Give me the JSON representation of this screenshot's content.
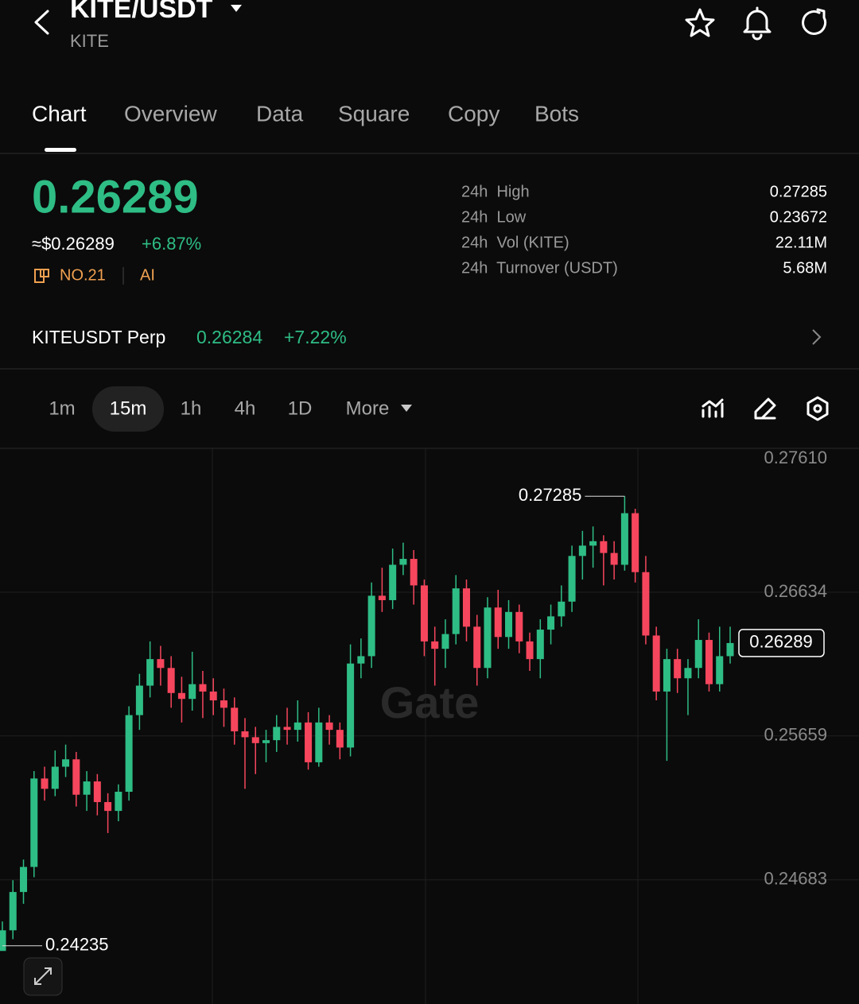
{
  "header": {
    "title": "KITE/USDT",
    "subtitle": "KITE"
  },
  "tabs": [
    "Chart",
    "Overview",
    "Data",
    "Square",
    "Copy",
    "Bots"
  ],
  "price": {
    "last": "0.26289",
    "usd": "≈$0.26289",
    "change": "+6.87%",
    "rank": "NO.21",
    "tag": "AI"
  },
  "stats": [
    {
      "label": "24h  High",
      "value": "0.27285"
    },
    {
      "label": "24h  Low",
      "value": "0.23672"
    },
    {
      "label": "24h  Vol (KITE)",
      "value": "22.11M"
    },
    {
      "label": "24h  Turnover (USDT)",
      "value": "5.68M"
    }
  ],
  "perp": {
    "name": "KITEUSDT Perp",
    "price": "0.26284",
    "change": "+7.22%"
  },
  "intervals": [
    "1m",
    "15m",
    "1h",
    "4h",
    "1D",
    "More"
  ],
  "chart_data": {
    "type": "candlestick",
    "watermark": "Gate",
    "up_color": "#2ebd85",
    "down_color": "#f6465d",
    "ylim": [
      0.2384,
      0.2761
    ],
    "yticks": [
      {
        "value": 0.2761,
        "label": "0.27610"
      },
      0.26634,
      0.25659,
      0.24683
    ],
    "grid": true,
    "high_marker": "0.27285",
    "low_marker": "0.24235",
    "last_price_label": "0.26289",
    "candles": [
      [
        0.242,
        0.244,
        0.24235,
        0.2434
      ],
      [
        0.2434,
        0.2468,
        0.2428,
        0.246
      ],
      [
        0.246,
        0.2482,
        0.2452,
        0.2477
      ],
      [
        0.2477,
        0.2542,
        0.247,
        0.2537
      ],
      [
        0.2537,
        0.2545,
        0.2522,
        0.253
      ],
      [
        0.253,
        0.2556,
        0.2525,
        0.2545
      ],
      [
        0.2545,
        0.256,
        0.2538,
        0.255
      ],
      [
        0.255,
        0.2555,
        0.2518,
        0.2526
      ],
      [
        0.2526,
        0.2542,
        0.2515,
        0.2535
      ],
      [
        0.2535,
        0.254,
        0.2512,
        0.2521
      ],
      [
        0.2521,
        0.2527,
        0.25,
        0.2515
      ],
      [
        0.2515,
        0.2533,
        0.2508,
        0.2528
      ],
      [
        0.2528,
        0.2586,
        0.2522,
        0.258
      ],
      [
        0.258,
        0.2608,
        0.257,
        0.26
      ],
      [
        0.26,
        0.263,
        0.2592,
        0.2618
      ],
      [
        0.2618,
        0.2627,
        0.26,
        0.2612
      ],
      [
        0.2612,
        0.262,
        0.2585,
        0.2595
      ],
      [
        0.2595,
        0.2606,
        0.2575,
        0.2591
      ],
      [
        0.2591,
        0.2623,
        0.2583,
        0.2601
      ],
      [
        0.2601,
        0.261,
        0.2578,
        0.2596
      ],
      [
        0.2596,
        0.2605,
        0.258,
        0.259
      ],
      [
        0.259,
        0.2598,
        0.2572,
        0.2585
      ],
      [
        0.2585,
        0.2592,
        0.256,
        0.2569
      ],
      [
        0.2569,
        0.2578,
        0.253,
        0.2565
      ],
      [
        0.2565,
        0.2572,
        0.254,
        0.2561
      ],
      [
        0.2561,
        0.257,
        0.2548,
        0.2563
      ],
      [
        0.2563,
        0.258,
        0.2555,
        0.2572
      ],
      [
        0.2572,
        0.2585,
        0.256,
        0.257
      ],
      [
        0.257,
        0.259,
        0.2562,
        0.2575
      ],
      [
        0.2575,
        0.2582,
        0.2543,
        0.2548
      ],
      [
        0.2548,
        0.2585,
        0.2545,
        0.2575
      ],
      [
        0.2575,
        0.258,
        0.256,
        0.257
      ],
      [
        0.257,
        0.2575,
        0.255,
        0.2558
      ],
      [
        0.2558,
        0.2628,
        0.2552,
        0.2615
      ],
      [
        0.2615,
        0.2632,
        0.2605,
        0.262
      ],
      [
        0.262,
        0.267,
        0.2612,
        0.2661
      ],
      [
        0.2661,
        0.268,
        0.265,
        0.2658
      ],
      [
        0.2658,
        0.2693,
        0.2652,
        0.2682
      ],
      [
        0.2682,
        0.2697,
        0.2675,
        0.2686
      ],
      [
        0.2686,
        0.2692,
        0.2655,
        0.2668
      ],
      [
        0.2668,
        0.2672,
        0.262,
        0.263
      ],
      [
        0.263,
        0.264,
        0.26,
        0.2625
      ],
      [
        0.2625,
        0.2645,
        0.2612,
        0.2635
      ],
      [
        0.2635,
        0.2675,
        0.2628,
        0.2666
      ],
      [
        0.2666,
        0.2672,
        0.263,
        0.264
      ],
      [
        0.264,
        0.2648,
        0.26,
        0.2612
      ],
      [
        0.2612,
        0.266,
        0.2605,
        0.2653
      ],
      [
        0.2653,
        0.2665,
        0.2625,
        0.2633
      ],
      [
        0.2633,
        0.2658,
        0.2625,
        0.265
      ],
      [
        0.265,
        0.2655,
        0.2622,
        0.263
      ],
      [
        0.263,
        0.2636,
        0.261,
        0.2618
      ],
      [
        0.2618,
        0.2645,
        0.2605,
        0.2638
      ],
      [
        0.2638,
        0.2655,
        0.2628,
        0.2647
      ],
      [
        0.2647,
        0.2668,
        0.264,
        0.2657
      ],
      [
        0.2657,
        0.2695,
        0.265,
        0.2688
      ],
      [
        0.2688,
        0.2705,
        0.2672,
        0.2695
      ],
      [
        0.2695,
        0.2708,
        0.268,
        0.2698
      ],
      [
        0.2698,
        0.2702,
        0.2668,
        0.269
      ],
      [
        0.269,
        0.2698,
        0.2672,
        0.2682
      ],
      [
        0.2682,
        0.27285,
        0.2678,
        0.2717
      ],
      [
        0.2717,
        0.272,
        0.267,
        0.2677
      ],
      [
        0.2677,
        0.2688,
        0.2628,
        0.2634
      ],
      [
        0.2634,
        0.264,
        0.259,
        0.2596
      ],
      [
        0.2596,
        0.2625,
        0.2549,
        0.2618
      ],
      [
        0.2618,
        0.2625,
        0.2595,
        0.2605
      ],
      [
        0.2605,
        0.2618,
        0.258,
        0.2612
      ],
      [
        0.2612,
        0.2645,
        0.2605,
        0.2631
      ],
      [
        0.2631,
        0.2636,
        0.2596,
        0.2601
      ],
      [
        0.2601,
        0.264,
        0.2596,
        0.262
      ],
      [
        0.262,
        0.264,
        0.2615,
        0.26289
      ]
    ]
  }
}
